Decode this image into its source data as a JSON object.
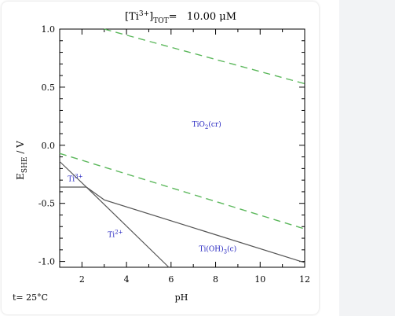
{
  "chart_data": {
    "type": "line",
    "title_main": "[Ti",
    "title_sup": "3+",
    "title_bracket": "]",
    "title_sub": "TOT",
    "title_rest": "=   10.00 μM",
    "xlabel": "pH",
    "ylabel_main": "E",
    "ylabel_sub": "SHE",
    "ylabel_rest": " / V",
    "xlim": [
      1,
      12
    ],
    "ylim": [
      -1.05,
      1.0
    ],
    "xticks": [
      2,
      4,
      6,
      8,
      10,
      12
    ],
    "yticks": [
      1.0,
      0.5,
      0.0,
      -0.5,
      -1.0
    ],
    "ytick_labels": [
      "1.0",
      "0.5",
      "0.0",
      "-0.5",
      "-1.0"
    ],
    "temperature_label": "t= 25°C",
    "water_stability_lines": [
      {
        "style": "dashed",
        "color": "#5cb85c",
        "points": [
          [
            3.0,
            1.0
          ],
          [
            12,
            0.53
          ]
        ]
      },
      {
        "style": "dashed",
        "color": "#5cb85c",
        "points": [
          [
            1.0,
            -0.07
          ],
          [
            12,
            -0.72
          ]
        ]
      }
    ],
    "boundaries": [
      {
        "points": [
          [
            1.0,
            -0.14
          ],
          [
            2.2,
            -0.36
          ],
          [
            3.0,
            -0.47
          ],
          [
            12,
            -1.01
          ]
        ]
      },
      {
        "points": [
          [
            1.0,
            -0.36
          ],
          [
            2.2,
            -0.36
          ]
        ]
      },
      {
        "points": [
          [
            2.2,
            -0.36
          ],
          [
            5.9,
            -1.05
          ]
        ]
      }
    ],
    "regions": [
      {
        "main": "TiO",
        "sub": "2",
        "tail": "(cr)",
        "x": 7.6,
        "y": 0.16
      },
      {
        "main": "Ti",
        "sup": "3+",
        "tail": "",
        "x": 1.7,
        "y": -0.31
      },
      {
        "main": "Ti",
        "sup": "2+",
        "tail": "",
        "x": 3.5,
        "y": -0.79
      },
      {
        "main": "Ti(OH)",
        "sub": "3",
        "tail": "(c)",
        "x": 8.1,
        "y": -0.91
      }
    ],
    "colors": {
      "boundary": "#555555",
      "region_label": "#1f1fbf",
      "text": "#000000"
    }
  }
}
